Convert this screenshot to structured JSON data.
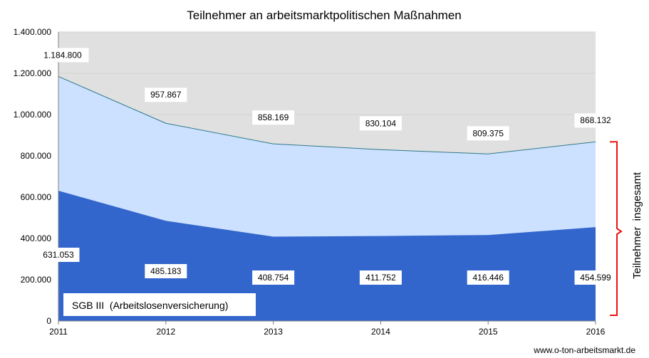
{
  "chart_data": {
    "type": "area",
    "title": "Teilnehmer an arbeitsmarktpolitischen Maßnahmen",
    "categories": [
      "2011",
      "2012",
      "2013",
      "2014",
      "2015",
      "2016"
    ],
    "series": [
      {
        "name": "SGB III  (Arbeitslosenversicherung)",
        "values": [
          631053,
          485183,
          408754,
          411752,
          416446,
          454599
        ],
        "labels": [
          "631.053",
          "485.183",
          "408.754",
          "411.752",
          "416.446",
          "454.599"
        ],
        "color": "#3366cc"
      },
      {
        "name": "",
        "values": [
          1184800,
          957867,
          858169,
          830104,
          809375,
          868132
        ],
        "labels": [
          "1.184.800",
          "957.867",
          "858.169",
          "830.104",
          "809.375",
          "868.132"
        ],
        "color": "#cce0ff"
      }
    ],
    "ylim": [
      0,
      1400000
    ],
    "yticks": [
      "0",
      "200.000",
      "400.000",
      "600.000",
      "800.000",
      "1.000.000",
      "1.200.000",
      "1.400.000"
    ],
    "grid": true,
    "plot_background": "#e0e0e0",
    "line_color": "#2e7a8a",
    "bracket_label": "Teilnehmer  insgesamt",
    "bracket_color": "#ee1111"
  },
  "footer": {
    "source": "www.o-ton-arbeitsmarkt.de"
  }
}
